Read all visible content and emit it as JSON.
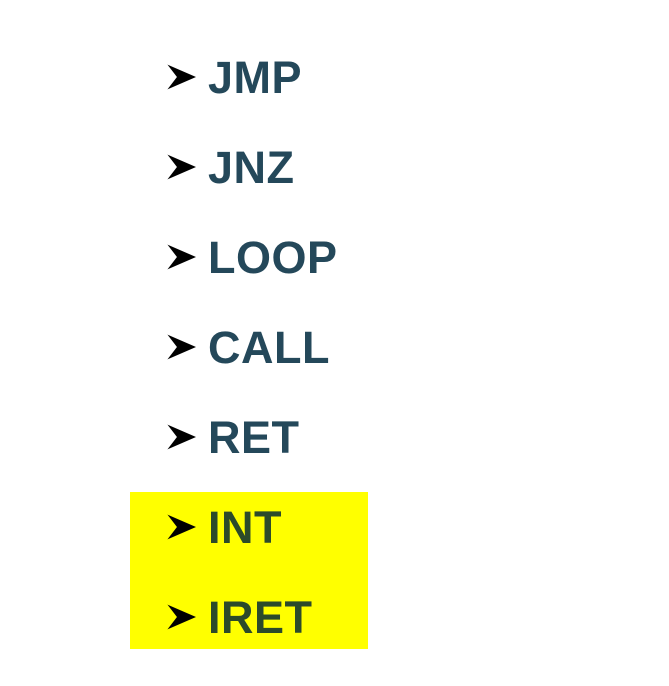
{
  "items": [
    {
      "label": "JMP",
      "highlighted": false
    },
    {
      "label": "JNZ",
      "highlighted": false
    },
    {
      "label": "LOOP",
      "highlighted": false
    },
    {
      "label": "CALL",
      "highlighted": false
    },
    {
      "label": "RET",
      "highlighted": false
    },
    {
      "label": "INT",
      "highlighted": true
    },
    {
      "label": "IRET",
      "highlighted": true
    }
  ],
  "colors": {
    "text": "#24485a",
    "highlight": "#ffff00",
    "bullet": "#000000"
  },
  "icons": {
    "bullet": "arrowhead-bullet-icon"
  }
}
